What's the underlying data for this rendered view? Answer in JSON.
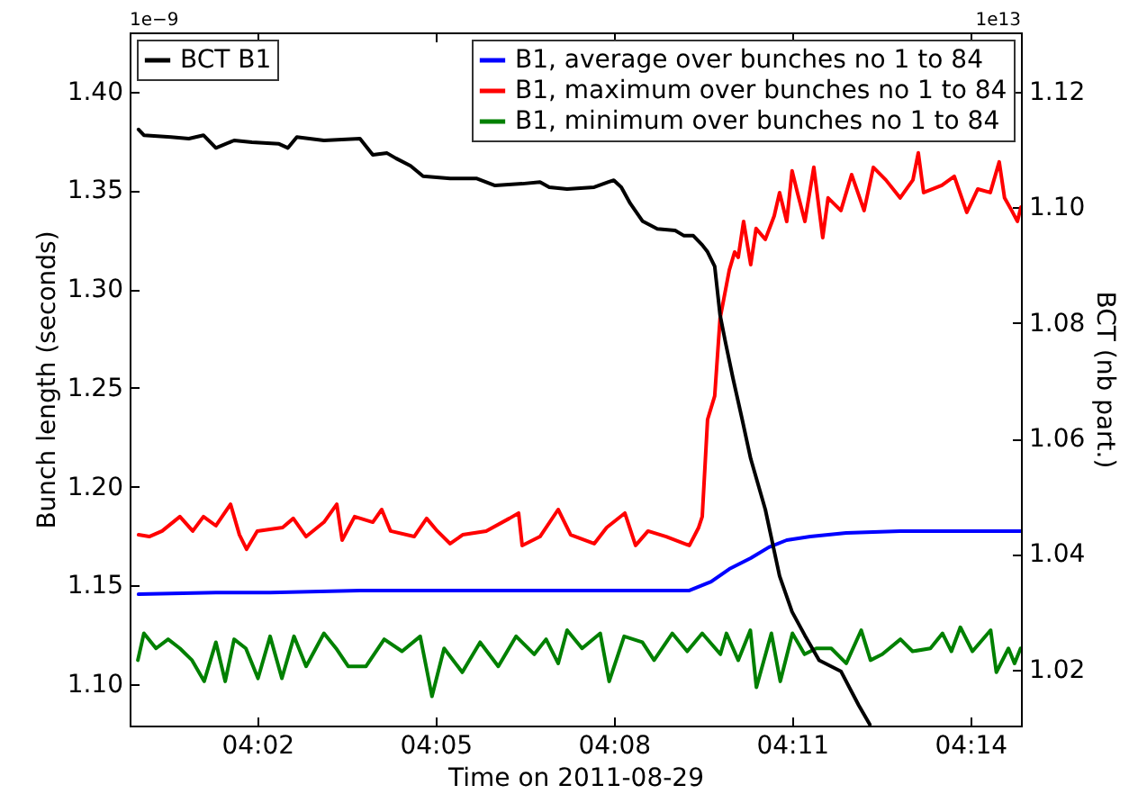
{
  "chart_data": {
    "type": "line",
    "xlabel": "Time on 2011-08-29",
    "ylabel": "Bunch length (seconds)",
    "y2label": "BCT (nb part.)",
    "annotations": [
      "1e−9",
      "1e13"
    ],
    "legend": "top right",
    "xlim": [
      3.9975,
      4.2475
    ],
    "xticks": [
      {
        "value": 4.0333,
        "label": "04:02"
      },
      {
        "value": 4.0833,
        "label": "04:05"
      },
      {
        "value": 4.1333,
        "label": "04:08"
      },
      {
        "value": 4.1833,
        "label": "04:11"
      },
      {
        "value": 4.2333,
        "label": "04:14"
      }
    ],
    "ylim": [
      1.079,
      1.43
    ],
    "yticks": [
      {
        "value": 1.1,
        "label": "1.10"
      },
      {
        "value": 1.15,
        "label": "1.15"
      },
      {
        "value": 1.2,
        "label": "1.20"
      },
      {
        "value": 1.25,
        "label": "1.25"
      },
      {
        "value": 1.3,
        "label": "1.30"
      },
      {
        "value": 1.35,
        "label": "1.35"
      },
      {
        "value": 1.4,
        "label": "1.40"
      }
    ],
    "y2lim": [
      1.0103,
      1.1303
    ],
    "y2ticks": [
      {
        "value": 1.02,
        "label": "1.02"
      },
      {
        "value": 1.04,
        "label": "1.04"
      },
      {
        "value": 1.06,
        "label": "1.06"
      },
      {
        "value": 1.08,
        "label": "1.08"
      },
      {
        "value": 1.1,
        "label": "1.10"
      },
      {
        "value": 1.12,
        "label": "1.12"
      }
    ],
    "series": [
      {
        "name": "B1, average over bunches no 1 to 84",
        "color": "#0000ff",
        "x": [
          4.0,
          4.0217,
          4.0369,
          4.0621,
          4.0874,
          4.1126,
          4.1379,
          4.1545,
          4.1606,
          4.1657,
          4.1717,
          4.1768,
          4.1818,
          4.1884,
          4.1985,
          4.2136,
          4.2288,
          4.2475
        ],
        "values": [
          1.1455,
          1.1464,
          1.1464,
          1.1474,
          1.1474,
          1.1474,
          1.1474,
          1.1474,
          1.1519,
          1.1583,
          1.1638,
          1.1693,
          1.1729,
          1.1747,
          1.1765,
          1.1775,
          1.1775,
          1.1775
        ]
      },
      {
        "name": "B1, maximum over bunches no 1 to 84",
        "color": "#ff0000",
        "x": [
          4.0,
          4.003,
          4.0066,
          4.0116,
          4.0152,
          4.0182,
          4.0217,
          4.0258,
          4.0283,
          4.0303,
          4.0333,
          4.0404,
          4.0434,
          4.047,
          4.052,
          4.0556,
          4.0571,
          4.0606,
          4.0657,
          4.0682,
          4.0707,
          4.0773,
          4.0808,
          4.0838,
          4.0874,
          4.0909,
          4.0975,
          4.104,
          4.1066,
          4.1076,
          4.1126,
          4.1177,
          4.1212,
          4.1278,
          4.1313,
          4.1364,
          4.1394,
          4.1429,
          4.148,
          4.1545,
          4.1571,
          4.1581,
          4.1596,
          4.1616,
          4.1631,
          4.1657,
          4.1672,
          4.1682,
          4.1697,
          4.1717,
          4.1732,
          4.1758,
          4.1783,
          4.1798,
          4.1818,
          4.1833,
          4.1848,
          4.1869,
          4.1894,
          4.1919,
          4.1934,
          4.197,
          4.2,
          4.2035,
          4.2061,
          4.2096,
          4.2136,
          4.2172,
          4.2187,
          4.2202,
          4.2253,
          4.2288,
          4.2323,
          4.2354,
          4.2389,
          4.2414,
          4.2429,
          4.2449,
          4.2465,
          4.2475
        ],
        "values": [
          1.1756,
          1.1747,
          1.1775,
          1.1848,
          1.1775,
          1.1848,
          1.1802,
          1.1911,
          1.1756,
          1.1683,
          1.1775,
          1.1793,
          1.1839,
          1.1747,
          1.182,
          1.1911,
          1.1729,
          1.1848,
          1.182,
          1.1884,
          1.1775,
          1.1747,
          1.1839,
          1.1775,
          1.1711,
          1.1756,
          1.1775,
          1.1839,
          1.1866,
          1.1702,
          1.1747,
          1.1884,
          1.1756,
          1.1711,
          1.1793,
          1.1866,
          1.1702,
          1.1775,
          1.1747,
          1.1702,
          1.1793,
          1.1848,
          1.234,
          1.2459,
          1.2851,
          1.3097,
          1.3188,
          1.3161,
          1.3343,
          1.3124,
          1.3307,
          1.3252,
          1.3371,
          1.3489,
          1.3343,
          1.3599,
          1.3489,
          1.3343,
          1.3617,
          1.3261,
          1.3462,
          1.3398,
          1.358,
          1.3398,
          1.3617,
          1.3553,
          1.3462,
          1.3553,
          1.369,
          1.3489,
          1.3526,
          1.3571,
          1.3389,
          1.3507,
          1.3489,
          1.3644,
          1.3462,
          1.3398,
          1.3343,
          1.3416
        ]
      },
      {
        "name": "B1, minimum over bunches no 1 to 84",
        "color": "#008000",
        "x": [
          3.9998,
          4.0015,
          4.0049,
          4.0083,
          4.0116,
          4.015,
          4.0184,
          4.0217,
          4.0243,
          4.0268,
          4.0301,
          4.0335,
          4.0369,
          4.0402,
          4.0436,
          4.047,
          4.052,
          4.0554,
          4.0588,
          4.0638,
          4.0689,
          4.0739,
          4.079,
          4.0823,
          4.0857,
          4.0908,
          4.0958,
          4.1009,
          4.1059,
          4.111,
          4.1143,
          4.1177,
          4.1202,
          4.1244,
          4.1295,
          4.132,
          4.1362,
          4.1413,
          4.1446,
          4.1497,
          4.1539,
          4.1581,
          4.1632,
          4.1649,
          4.1682,
          4.1716,
          4.1733,
          4.1775,
          4.18,
          4.1834,
          4.1868,
          4.1901,
          4.1943,
          4.1985,
          4.2027,
          4.2053,
          4.2086,
          4.2137,
          4.2171,
          4.2221,
          4.2255,
          4.228,
          4.2305,
          4.2339,
          4.239,
          4.2406,
          4.244,
          4.2457,
          4.2474
        ],
        "values": [
          1.1121,
          1.1257,
          1.1181,
          1.1227,
          1.1181,
          1.1121,
          1.1014,
          1.1212,
          1.1014,
          1.1227,
          1.1181,
          1.1029,
          1.1242,
          1.1029,
          1.1242,
          1.109,
          1.1257,
          1.1181,
          1.109,
          1.109,
          1.1227,
          1.1166,
          1.1242,
          1.0938,
          1.1181,
          1.106,
          1.1212,
          1.109,
          1.1242,
          1.1151,
          1.1227,
          1.1105,
          1.1273,
          1.1181,
          1.1257,
          1.1014,
          1.1242,
          1.1212,
          1.1121,
          1.1257,
          1.1166,
          1.1257,
          1.1151,
          1.1257,
          1.1121,
          1.1273,
          1.0984,
          1.1257,
          1.1014,
          1.1257,
          1.1151,
          1.1181,
          1.1181,
          1.1105,
          1.1273,
          1.1121,
          1.1151,
          1.1227,
          1.1166,
          1.1181,
          1.1257,
          1.1166,
          1.1288,
          1.1166,
          1.1273,
          1.106,
          1.1181,
          1.1105,
          1.1181
        ]
      },
      {
        "name": "BCT B1",
        "color": "#000000",
        "axis": "y2",
        "x": [
          4.0,
          4.0015,
          4.0091,
          4.0141,
          4.0182,
          4.0217,
          4.0268,
          4.0318,
          4.0394,
          4.0419,
          4.0444,
          4.052,
          4.0621,
          4.0657,
          4.0697,
          4.0722,
          4.0763,
          4.0798,
          4.0874,
          4.0949,
          4.1,
          4.1076,
          4.1126,
          4.1152,
          4.1202,
          4.1278,
          4.1318,
          4.1333,
          4.1354,
          4.1379,
          4.1414,
          4.1455,
          4.1505,
          4.153,
          4.1556,
          4.1581,
          4.1596,
          4.1616,
          4.1631,
          4.1646,
          4.1667,
          4.1692,
          4.1717,
          4.1758,
          4.1798,
          4.1833,
          4.1869,
          4.1909,
          4.197,
          4.202,
          4.2051
        ],
        "values": [
          1.1135,
          1.1125,
          1.1122,
          1.1119,
          1.1125,
          1.1103,
          1.1116,
          1.1113,
          1.111,
          1.1103,
          1.1122,
          1.1116,
          1.1119,
          1.1091,
          1.1094,
          1.1085,
          1.1072,
          1.1054,
          1.105,
          1.105,
          1.1038,
          1.1041,
          1.1044,
          1.1035,
          1.1032,
          1.1035,
          1.1044,
          1.1047,
          1.1035,
          1.1007,
          1.0976,
          1.0963,
          1.096,
          1.0951,
          1.0951,
          1.0935,
          1.0923,
          1.0898,
          1.0814,
          1.0767,
          1.0705,
          1.0636,
          1.0565,
          1.0477,
          1.0362,
          1.03,
          1.0259,
          1.0216,
          1.0197,
          1.0138,
          1.0105
        ]
      }
    ]
  }
}
